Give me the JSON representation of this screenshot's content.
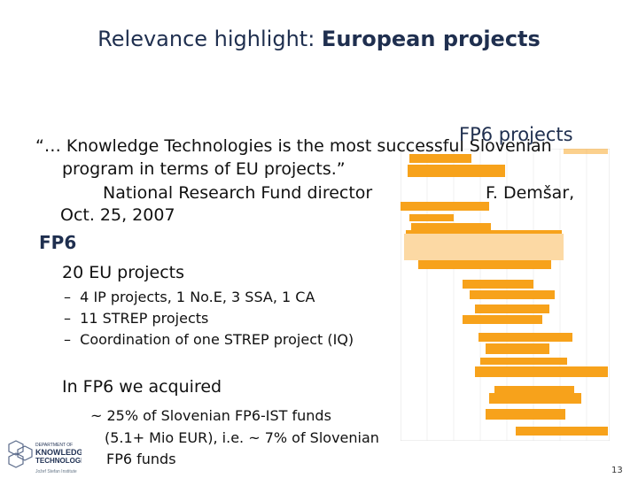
{
  "slide": {
    "title_prefix": "Relevance highlight: ",
    "title_bold": "European projects",
    "quote_line1": "“… Knowledge Technologies is the most successful Slovenian",
    "quote_line2": "program in terms of EU projects.”",
    "quote_line3": "National Research Fund director",
    "quote_author": "F. Demšar,",
    "quote_date": "Oct. 25, 2007",
    "chart_label": "FP6 projects",
    "section": "FP6",
    "count": "20 EU projects",
    "bullets": [
      "4 IP projects, 1 No.E, 3 SSA, 1 CA",
      "11 STREP projects",
      "Coordination of one STREP project (IQ)"
    ],
    "acquired_heading": "In FP6 we acquired",
    "acquired_line1": "~ 25% of Slovenian FP6-IST funds",
    "acquired_line2": "(5.1+ Mio EUR), i.e. ~ 7% of Slovenian",
    "acquired_line3": "FP6 funds",
    "page_number": "13"
  },
  "logo": {
    "line1": "DEPARTMENT OF",
    "line2": "KNOWLEDGE",
    "line3": "TECHNOLOGIES",
    "institute": "Jožef Stefan Institute"
  },
  "colors": {
    "bar": "#f7a21b",
    "bar_light": "#fcd9a4",
    "title_blue": "#1f2f4f"
  }
}
